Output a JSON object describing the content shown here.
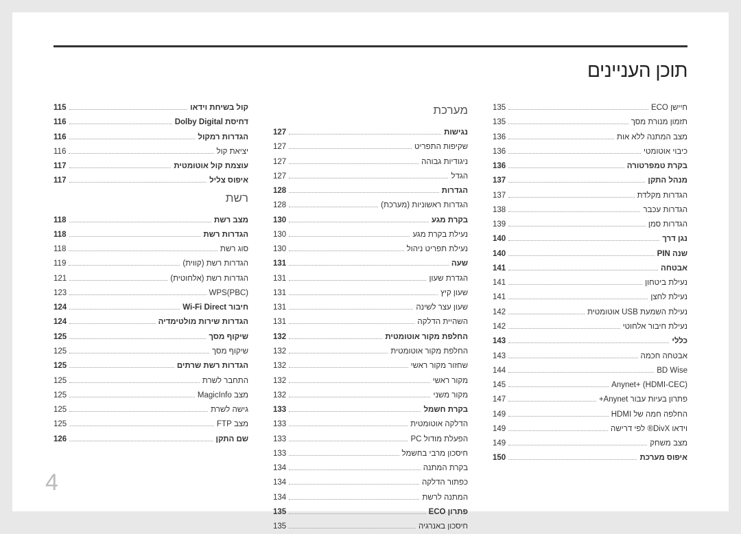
{
  "title": "תוכן העניינים",
  "pageNumber": "4",
  "columns": [
    [
      {
        "type": "row",
        "bold": true,
        "label": "קול בשיחת וידאו",
        "page": "115"
      },
      {
        "type": "row",
        "bold": true,
        "label": "דחיסת Dolby Digital",
        "page": "116"
      },
      {
        "type": "row",
        "bold": true,
        "label": "הגדרות רמקול",
        "page": "116"
      },
      {
        "type": "row",
        "label": "יציאת קול",
        "page": "116"
      },
      {
        "type": "row",
        "bold": true,
        "label": "עוצמת קול אוטומטית",
        "page": "117"
      },
      {
        "type": "row",
        "bold": true,
        "label": "איפוס צליל",
        "page": "117"
      },
      {
        "type": "section",
        "label": "רשת"
      },
      {
        "type": "row",
        "bold": true,
        "label": "מצב רשת",
        "page": "118"
      },
      {
        "type": "row",
        "bold": true,
        "label": "הגדרות רשת",
        "page": "118"
      },
      {
        "type": "row",
        "label": "סוג רשת",
        "page": "118"
      },
      {
        "type": "row",
        "label": "הגדרות רשת (קווית)",
        "page": "119"
      },
      {
        "type": "row",
        "label": "הגדרות רשת (אלחוטית)",
        "page": "121"
      },
      {
        "type": "row",
        "label": "WPS(PBC)",
        "page": "123"
      },
      {
        "type": "row",
        "bold": true,
        "label": "חיבור Wi-Fi Direct",
        "page": "124"
      },
      {
        "type": "row",
        "bold": true,
        "label": "הגדרות שירות מולטימדיה",
        "page": "124"
      },
      {
        "type": "row",
        "bold": true,
        "label": "שיקוף מסך",
        "page": "125"
      },
      {
        "type": "row",
        "label": "שיקוף מסך",
        "page": "125"
      },
      {
        "type": "row",
        "bold": true,
        "label": "הגדרות רשת שרתים",
        "page": "125"
      },
      {
        "type": "row",
        "label": "התחבר לשרת",
        "page": "125"
      },
      {
        "type": "row",
        "label": "מצב MagicInfo",
        "page": "125"
      },
      {
        "type": "row",
        "label": "גישה לשרת",
        "page": "125"
      },
      {
        "type": "row",
        "label": "מצב FTP",
        "page": "125"
      },
      {
        "type": "row",
        "bold": true,
        "label": "שם התקן",
        "page": "126"
      }
    ],
    [
      {
        "type": "section",
        "label": "מערכת"
      },
      {
        "type": "row",
        "bold": true,
        "label": "נגישות",
        "page": "127"
      },
      {
        "type": "row",
        "label": "שקיפות התפריט",
        "page": "127"
      },
      {
        "type": "row",
        "label": "ניגודיות גבוהה",
        "page": "127"
      },
      {
        "type": "row",
        "label": "הגדל",
        "page": "127"
      },
      {
        "type": "row",
        "bold": true,
        "label": "הגדרות",
        "page": "128"
      },
      {
        "type": "row",
        "label": "הגדרות ראשוניות (מערכת)",
        "page": "128"
      },
      {
        "type": "row",
        "bold": true,
        "label": "בקרת מגע",
        "page": "130"
      },
      {
        "type": "row",
        "label": "נעילת בקרת מגע",
        "page": "130"
      },
      {
        "type": "row",
        "label": "נעילת תפריט ניהול",
        "page": "130"
      },
      {
        "type": "row",
        "bold": true,
        "label": "שעה",
        "page": "131"
      },
      {
        "type": "row",
        "label": "הגדרת שעון",
        "page": "131"
      },
      {
        "type": "row",
        "label": "שעון קיץ",
        "page": "131"
      },
      {
        "type": "row",
        "label": "שעון עצר לשינה",
        "page": "131"
      },
      {
        "type": "row",
        "label": "השהיית הדלקה",
        "page": "131"
      },
      {
        "type": "row",
        "bold": true,
        "label": "החלפת מקור אוטומטית",
        "page": "132"
      },
      {
        "type": "row",
        "label": "החלפת מקור אוטומטית",
        "page": "132"
      },
      {
        "type": "row",
        "label": "שחזור מקור ראשי",
        "page": "132"
      },
      {
        "type": "row",
        "label": "מקור ראשי",
        "page": "132"
      },
      {
        "type": "row",
        "label": "מקור משני",
        "page": "132"
      },
      {
        "type": "row",
        "bold": true,
        "label": "בקרת חשמל",
        "page": "133"
      },
      {
        "type": "row",
        "label": "הדלקה אוטומטית",
        "page": "133"
      },
      {
        "type": "row",
        "label": "הפעלת מודול PC",
        "page": "133"
      },
      {
        "type": "row",
        "label": "חיסכון מרבי בחשמל",
        "page": "133"
      },
      {
        "type": "row",
        "label": "בקרת המתנה",
        "page": "134"
      },
      {
        "type": "row",
        "label": "כפתור הדלקה",
        "page": "134"
      },
      {
        "type": "row",
        "label": "המתנה לרשת",
        "page": "134"
      },
      {
        "type": "row",
        "bold": true,
        "label": "פתרון ECO",
        "page": "135"
      },
      {
        "type": "row",
        "label": "חיסכון באנרגיה",
        "page": "135"
      }
    ],
    [
      {
        "type": "row",
        "label": "חיישן ECO",
        "page": "135"
      },
      {
        "type": "row",
        "label": "תזמון מנורת מסך",
        "page": "135"
      },
      {
        "type": "row",
        "label": "מצב המתנה ללא אות",
        "page": "136"
      },
      {
        "type": "row",
        "label": "כיבוי אוטומטי",
        "page": "136"
      },
      {
        "type": "row",
        "bold": true,
        "label": "בקרת טמפרטורה",
        "page": "136"
      },
      {
        "type": "row",
        "bold": true,
        "label": "מנהל התקן",
        "page": "137"
      },
      {
        "type": "row",
        "label": "הגדרות מקלדת",
        "page": "137"
      },
      {
        "type": "row",
        "label": "הגדרות עכבר",
        "page": "138"
      },
      {
        "type": "row",
        "label": "הגדרות סמן",
        "page": "139"
      },
      {
        "type": "row",
        "bold": true,
        "label": "נגן דרך",
        "page": "140"
      },
      {
        "type": "row",
        "bold": true,
        "label": "שנה PIN",
        "page": "140"
      },
      {
        "type": "row",
        "bold": true,
        "label": "אבטחה",
        "page": "141"
      },
      {
        "type": "row",
        "label": "נעילת ביטחון",
        "page": "141"
      },
      {
        "type": "row",
        "label": "נעילת לחצן",
        "page": "141"
      },
      {
        "type": "row",
        "label": "נעילת השמעת USB אוטומטית",
        "page": "142"
      },
      {
        "type": "row",
        "label": "נעילת חיבור אלחוטי",
        "page": "142"
      },
      {
        "type": "row",
        "bold": true,
        "label": "כללי",
        "page": "143"
      },
      {
        "type": "row",
        "label": "אבטחה חכמה",
        "page": "143"
      },
      {
        "type": "row",
        "label": "BD Wise",
        "page": "144"
      },
      {
        "type": "row",
        "label": "Anynet+ (HDMI-CEC)",
        "page": "145"
      },
      {
        "type": "row",
        "label": "פתרון בעיות עבור Anynet+",
        "page": "147"
      },
      {
        "type": "row",
        "label": "החלפה חמה של HDMI",
        "page": "149"
      },
      {
        "type": "row",
        "label": "וידאו DivX® לפי דרישה",
        "page": "149"
      },
      {
        "type": "row",
        "label": "מצב משחק",
        "page": "149"
      },
      {
        "type": "row",
        "bold": true,
        "label": "איפוס מערכת",
        "page": "150"
      }
    ]
  ]
}
